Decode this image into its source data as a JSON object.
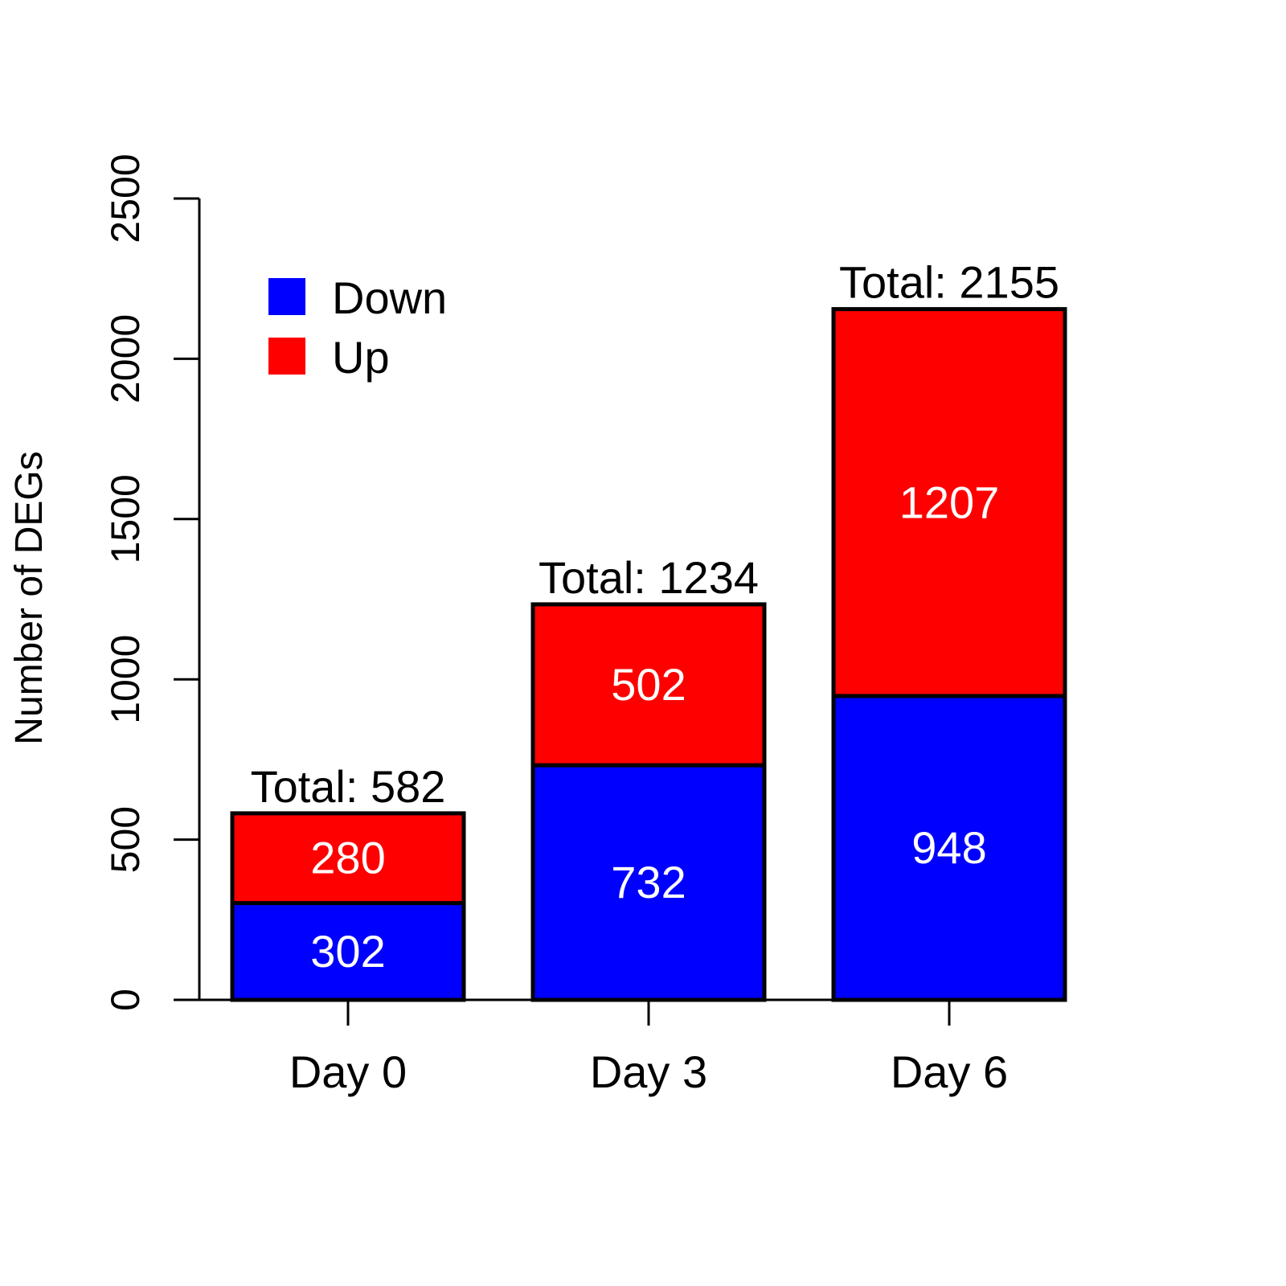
{
  "colors": {
    "down": "#0000ff",
    "up": "#ff0000",
    "segment_label": "#ffffff",
    "text": "#000000",
    "background": "#ffffff"
  },
  "legend": {
    "placement": "top-left",
    "entries": [
      {
        "label": "Down",
        "color": "#0000ff"
      },
      {
        "label": "Up",
        "color": "#ff0000"
      }
    ]
  },
  "chart_data": {
    "type": "bar",
    "stacked": true,
    "title": "",
    "xlabel": "",
    "ylabel": "Number of DEGs",
    "ylim": [
      0,
      2500
    ],
    "yticks": [
      0,
      500,
      1000,
      1500,
      2000,
      2500
    ],
    "categories": [
      "Day 0",
      "Day 3",
      "Day 6"
    ],
    "series": [
      {
        "name": "Down",
        "values": [
          302,
          732,
          948
        ]
      },
      {
        "name": "Up",
        "values": [
          280,
          502,
          1207
        ]
      }
    ],
    "totals": [
      582,
      1234,
      2155
    ],
    "total_labels": [
      "Total: 582",
      "Total: 1234",
      "Total: 2155"
    ],
    "grid": false,
    "legend_position": "top-left"
  }
}
